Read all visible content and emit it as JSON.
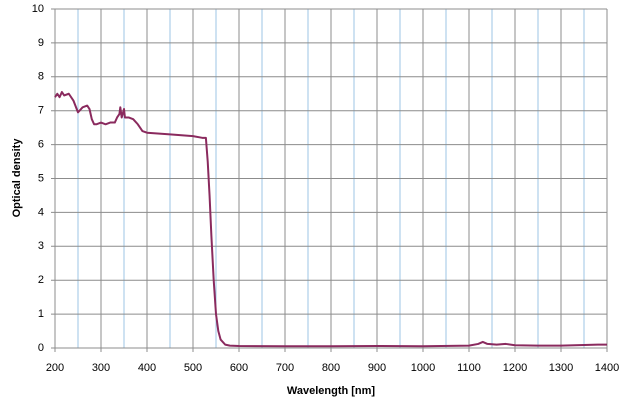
{
  "chart_data": {
    "type": "line",
    "x_label": "Wavelength [nm]",
    "y_label": "Optical density",
    "x": [
      200,
      205,
      210,
      215,
      220,
      230,
      240,
      250,
      260,
      270,
      275,
      280,
      285,
      290,
      300,
      310,
      320,
      330,
      335,
      340,
      342,
      345,
      350,
      352,
      360,
      370,
      380,
      390,
      400,
      450,
      500,
      520,
      528,
      532,
      536,
      540,
      545,
      550,
      555,
      560,
      570,
      580,
      600,
      700,
      800,
      900,
      1000,
      1100,
      1120,
      1130,
      1140,
      1160,
      1180,
      1200,
      1250,
      1300,
      1350,
      1380,
      1400
    ],
    "series": [
      {
        "name": "Optical density",
        "color": "#8a2a5e",
        "values": [
          7.4,
          7.5,
          7.4,
          7.55,
          7.45,
          7.5,
          7.3,
          6.95,
          7.1,
          7.15,
          7.05,
          6.75,
          6.6,
          6.6,
          6.65,
          6.6,
          6.65,
          6.65,
          6.8,
          6.9,
          7.1,
          6.8,
          7.05,
          6.8,
          6.8,
          6.75,
          6.6,
          6.4,
          6.35,
          6.3,
          6.25,
          6.2,
          6.2,
          5.5,
          4.5,
          3.3,
          2.0,
          1.0,
          0.5,
          0.25,
          0.1,
          0.07,
          0.06,
          0.05,
          0.05,
          0.06,
          0.05,
          0.07,
          0.12,
          0.18,
          0.12,
          0.1,
          0.12,
          0.08,
          0.07,
          0.07,
          0.09,
          0.1,
          0.1
        ]
      }
    ],
    "xlim": [
      200,
      1400
    ],
    "xticks": [
      200,
      300,
      400,
      500,
      600,
      700,
      800,
      900,
      1000,
      1100,
      1200,
      1300,
      1400
    ],
    "x_minor_grid": [
      250,
      350,
      450,
      550,
      650,
      750,
      850,
      950,
      1050,
      1150,
      1250,
      1350
    ],
    "ylim": [
      0,
      10
    ],
    "yticks": [
      0,
      1,
      2,
      3,
      4,
      5,
      6,
      7,
      8,
      9,
      10
    ],
    "grid": true
  }
}
